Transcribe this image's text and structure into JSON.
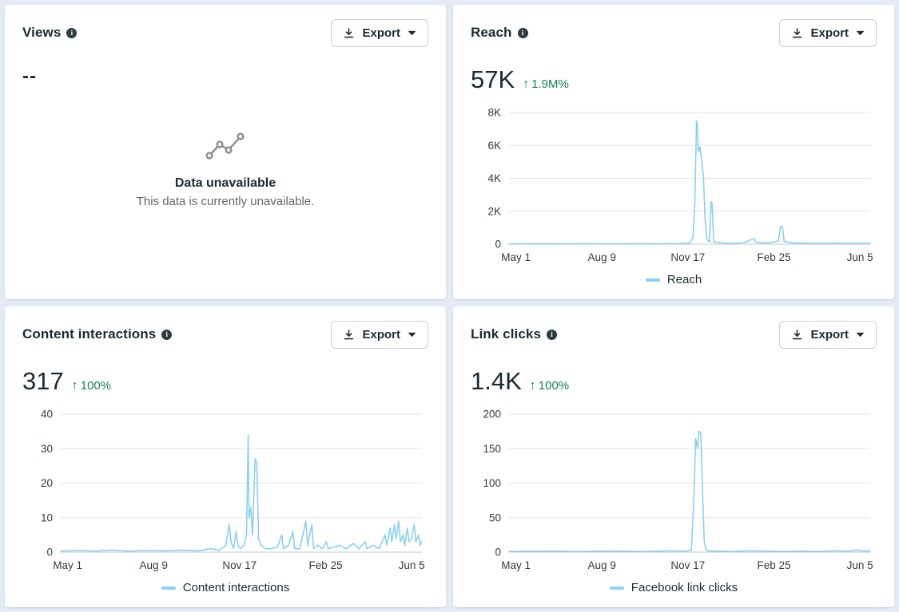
{
  "labels": {
    "export": "Export"
  },
  "icons": {
    "up_arrow": "↑",
    "info": "i"
  },
  "colors": {
    "line": "#8ad1f2",
    "grid": "#e3e5e9",
    "axis": "#c3c7cc",
    "tick_text": "#343b41",
    "positive": "#12805c",
    "page_bg": "#e4ebf7"
  },
  "cards": [
    {
      "id": "views",
      "title": "Views",
      "metric": {
        "value": "--",
        "delta": null
      },
      "empty": {
        "title": "Data unavailable",
        "subtitle": "This data is currently unavailable."
      }
    },
    {
      "id": "reach",
      "title": "Reach",
      "metric": {
        "value": "57K",
        "delta": "1.9M%"
      },
      "legend": "Reach"
    },
    {
      "id": "content_interactions",
      "title": "Content interactions",
      "metric": {
        "value": "317",
        "delta": "100%"
      },
      "legend": "Content interactions"
    },
    {
      "id": "link_clicks",
      "title": "Link clicks",
      "metric": {
        "value": "1.4K",
        "delta": "100%"
      },
      "legend": "Facebook link clicks"
    }
  ],
  "chart_data": [
    {
      "type": "line",
      "title": "Reach",
      "x_domain": [
        0,
        420
      ],
      "x_tick_days": [
        8,
        108,
        208,
        308,
        408
      ],
      "x_tick_labels": [
        "May 1",
        "Aug 9",
        "Nov 17",
        "Feb 25",
        "Jun 5"
      ],
      "y_ticks": [
        0,
        2000,
        4000,
        6000,
        8000
      ],
      "y_tick_labels": [
        "0",
        "2K",
        "4K",
        "6K",
        "8K"
      ],
      "ylim": [
        0,
        8000
      ],
      "grid": true,
      "legend_position": "bottom",
      "series": [
        {
          "name": "Reach",
          "points": [
            [
              0,
              20
            ],
            [
              30,
              25
            ],
            [
              60,
              20
            ],
            [
              90,
              30
            ],
            [
              120,
              25
            ],
            [
              150,
              30
            ],
            [
              180,
              25
            ],
            [
              200,
              40
            ],
            [
              210,
              60
            ],
            [
              214,
              400
            ],
            [
              216,
              2500
            ],
            [
              218,
              7500
            ],
            [
              219,
              7300
            ],
            [
              220,
              5600
            ],
            [
              222,
              5900
            ],
            [
              224,
              5000
            ],
            [
              226,
              4200
            ],
            [
              228,
              1500
            ],
            [
              230,
              300
            ],
            [
              233,
              120
            ],
            [
              235,
              2600
            ],
            [
              236,
              2500
            ],
            [
              238,
              150
            ],
            [
              245,
              80
            ],
            [
              255,
              60
            ],
            [
              265,
              50
            ],
            [
              275,
              120
            ],
            [
              285,
              350
            ],
            [
              287,
              120
            ],
            [
              295,
              80
            ],
            [
              305,
              100
            ],
            [
              313,
              200
            ],
            [
              316,
              1100
            ],
            [
              318,
              1050
            ],
            [
              320,
              150
            ],
            [
              330,
              80
            ],
            [
              345,
              60
            ],
            [
              360,
              50
            ],
            [
              380,
              60
            ],
            [
              400,
              50
            ],
            [
              420,
              60
            ]
          ]
        }
      ]
    },
    {
      "type": "line",
      "title": "Content interactions",
      "x_domain": [
        0,
        420
      ],
      "x_tick_days": [
        8,
        108,
        208,
        308,
        408
      ],
      "x_tick_labels": [
        "May 1",
        "Aug 9",
        "Nov 17",
        "Feb 25",
        "Jun 5"
      ],
      "y_ticks": [
        0,
        10,
        20,
        30,
        40
      ],
      "y_tick_labels": [
        "0",
        "10",
        "20",
        "30",
        "40"
      ],
      "ylim": [
        0,
        40
      ],
      "grid": true,
      "legend_position": "bottom",
      "series": [
        {
          "name": "Content interactions",
          "points": [
            [
              0,
              0.3
            ],
            [
              20,
              0.5
            ],
            [
              40,
              0.3
            ],
            [
              60,
              0.6
            ],
            [
              80,
              0.3
            ],
            [
              100,
              0.5
            ],
            [
              120,
              0.4
            ],
            [
              140,
              0.6
            ],
            [
              160,
              0.4
            ],
            [
              175,
              1
            ],
            [
              185,
              0.5
            ],
            [
              192,
              2
            ],
            [
              196,
              8
            ],
            [
              198,
              3
            ],
            [
              201,
              1
            ],
            [
              204,
              6
            ],
            [
              206,
              2
            ],
            [
              209,
              1
            ],
            [
              213,
              2
            ],
            [
              216,
              5
            ],
            [
              218,
              34
            ],
            [
              219,
              10
            ],
            [
              221,
              13
            ],
            [
              223,
              5
            ],
            [
              226,
              27
            ],
            [
              228,
              26
            ],
            [
              230,
              4
            ],
            [
              233,
              2
            ],
            [
              238,
              1
            ],
            [
              245,
              1
            ],
            [
              252,
              1.5
            ],
            [
              257,
              5
            ],
            [
              259,
              1
            ],
            [
              265,
              2
            ],
            [
              270,
              6
            ],
            [
              272,
              1
            ],
            [
              278,
              1
            ],
            [
              285,
              9
            ],
            [
              287,
              2
            ],
            [
              292,
              8
            ],
            [
              294,
              1
            ],
            [
              299,
              2
            ],
            [
              304,
              1
            ],
            [
              309,
              3
            ],
            [
              311,
              1
            ],
            [
              318,
              1.5
            ],
            [
              325,
              2
            ],
            [
              332,
              1
            ],
            [
              340,
              2.5
            ],
            [
              347,
              1
            ],
            [
              354,
              3
            ],
            [
              356,
              1
            ],
            [
              363,
              2
            ],
            [
              370,
              1
            ],
            [
              377,
              5
            ],
            [
              379,
              2
            ],
            [
              383,
              7
            ],
            [
              385,
              3
            ],
            [
              388,
              8
            ],
            [
              390,
              4
            ],
            [
              393,
              9
            ],
            [
              395,
              3
            ],
            [
              398,
              5
            ],
            [
              400,
              2
            ],
            [
              403,
              7
            ],
            [
              405,
              3
            ],
            [
              408,
              4
            ],
            [
              411,
              8
            ],
            [
              413,
              3
            ],
            [
              416,
              5
            ],
            [
              418,
              2
            ],
            [
              420,
              3
            ]
          ]
        }
      ]
    },
    {
      "type": "line",
      "title": "Link clicks",
      "x_domain": [
        0,
        420
      ],
      "x_tick_days": [
        8,
        108,
        208,
        308,
        408
      ],
      "x_tick_labels": [
        "May 1",
        "Aug 9",
        "Nov 17",
        "Feb 25",
        "Jun 5"
      ],
      "y_ticks": [
        0,
        50,
        100,
        150,
        200
      ],
      "y_tick_labels": [
        "0",
        "50",
        "100",
        "150",
        "200"
      ],
      "ylim": [
        0,
        200
      ],
      "grid": true,
      "legend_position": "bottom",
      "series": [
        {
          "name": "Facebook link clicks",
          "points": [
            [
              0,
              1
            ],
            [
              40,
              1.5
            ],
            [
              80,
              1
            ],
            [
              120,
              1.5
            ],
            [
              160,
              1
            ],
            [
              190,
              2
            ],
            [
              200,
              1.5
            ],
            [
              208,
              2
            ],
            [
              212,
              3
            ],
            [
              215,
              80
            ],
            [
              217,
              165
            ],
            [
              219,
              150
            ],
            [
              221,
              175
            ],
            [
              223,
              172
            ],
            [
              225,
              90
            ],
            [
              227,
              15
            ],
            [
              229,
              4
            ],
            [
              232,
              2
            ],
            [
              240,
              1.5
            ],
            [
              260,
              1
            ],
            [
              280,
              2
            ],
            [
              300,
              1.5
            ],
            [
              320,
              1
            ],
            [
              340,
              1.5
            ],
            [
              360,
              1
            ],
            [
              380,
              2
            ],
            [
              395,
              1.5
            ],
            [
              405,
              3
            ],
            [
              412,
              1.5
            ],
            [
              420,
              2
            ]
          ]
        }
      ]
    }
  ]
}
